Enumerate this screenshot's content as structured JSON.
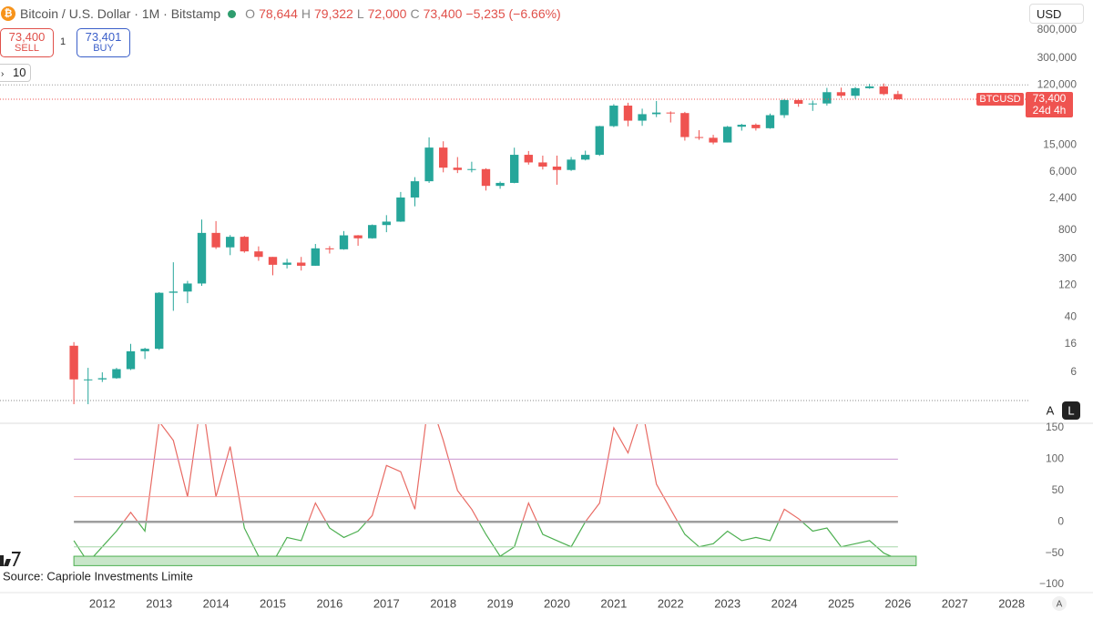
{
  "ui": {
    "header": {
      "symbol": "Bitcoin / U.S. Dollar · 1M · Bitstamp",
      "o_label": "O",
      "o": "78,644",
      "h_label": "H",
      "h": "79,322",
      "l_label": "L",
      "l": "72,000",
      "c_label": "C",
      "c": "73,400",
      "change": "−5,235 (−6.66%)"
    },
    "sell": {
      "price": "73,400",
      "label": "SELL"
    },
    "qty": "1",
    "buy": {
      "price": "73,401",
      "label": "BUY"
    },
    "interval": "10",
    "currency": "USD",
    "source": "Source: Capriole Investments Limite",
    "buttons": [
      "A",
      "L"
    ],
    "corner": "A"
  },
  "chart_data": [
    {
      "type": "candlestick",
      "log_scale": true,
      "x": [
        2011.5,
        2011.75,
        2012,
        2012.25,
        2012.5,
        2012.75,
        2013,
        2013.25,
        2013.5,
        2013.75,
        2014,
        2014.25,
        2014.5,
        2014.75,
        2015,
        2015.25,
        2015.5,
        2015.75,
        2016,
        2016.25,
        2016.5,
        2016.75,
        2017,
        2017.25,
        2017.5,
        2017.75,
        2018,
        2018.25,
        2018.5,
        2018.75,
        2019,
        2019.25,
        2019.5,
        2019.75,
        2020,
        2020.25,
        2020.5,
        2020.75,
        2021,
        2021.25,
        2021.5,
        2021.75,
        2022,
        2022.25,
        2022.5,
        2022.75,
        2023,
        2023.25,
        2023.5,
        2023.75,
        2024,
        2024.25,
        2024.5,
        2024.75,
        2025,
        2025.25,
        2025.5,
        2025.75,
        2026
      ],
      "open": [
        15,
        4.7,
        4.7,
        4.9,
        6.7,
        12.4,
        13.5,
        93,
        97,
        128,
        732,
        445,
        640,
        387,
        320,
        244,
        263,
        236,
        430,
        416,
        673,
        608,
        960,
        1080,
        2480,
        4340,
        13850,
        6930,
        6400,
        6600,
        3700,
        4100,
        10800,
        8300,
        7200,
        6400,
        9150,
        10780,
        28990,
        58800,
        35000,
        43800,
        46300,
        45500,
        19900,
        19400,
        16500,
        28400,
        30400,
        27000,
        42300,
        71300,
        62700,
        63300,
        93400,
        82500,
        107200,
        114000,
        87500
      ],
      "high": [
        17,
        7,
        6,
        7,
        16,
        14,
        95,
        266,
        140,
        1160,
        1100,
        680,
        660,
        460,
        320,
        300,
        320,
        500,
        465,
        780,
        680,
        980,
        1350,
        3000,
        5000,
        19700,
        17200,
        9990,
        8500,
        6800,
        4300,
        13800,
        12300,
        10500,
        10500,
        10000,
        12450,
        29300,
        61800,
        64900,
        52900,
        69000,
        48200,
        47400,
        25200,
        21500,
        29200,
        31400,
        31800,
        44700,
        73800,
        72000,
        70000,
        108300,
        109300,
        111900,
        124400,
        126200,
        97900
      ],
      "low": [
        2,
        2,
        4.3,
        4.8,
        6.5,
        9.5,
        13,
        50,
        65,
        118,
        420,
        340,
        370,
        280,
        170,
        215,
        200,
        235,
        360,
        410,
        470,
        600,
        750,
        1070,
        1830,
        4100,
        5900,
        5750,
        5900,
        3150,
        3350,
        4050,
        7700,
        6500,
        3850,
        6200,
        8900,
        10400,
        28000,
        28800,
        29300,
        39600,
        32900,
        17600,
        18100,
        15500,
        16500,
        24800,
        24900,
        26500,
        38500,
        56500,
        49000,
        58900,
        76600,
        74400,
        105000,
        84000,
        72000
      ],
      "close": [
        4.7,
        4.7,
        4.9,
        6.7,
        12.4,
        13.5,
        93,
        97,
        128,
        732,
        445,
        640,
        387,
        320,
        244,
        263,
        236,
        430,
        416,
        673,
        608,
        960,
        1080,
        2480,
        4340,
        13850,
        6930,
        6400,
        6600,
        3700,
        4100,
        10800,
        8300,
        7200,
        6400,
        9150,
        10780,
        28990,
        58800,
        35000,
        43800,
        46300,
        45500,
        19900,
        19400,
        16500,
        28400,
        30400,
        27000,
        42300,
        71300,
        62700,
        63300,
        93400,
        82500,
        107200,
        114000,
        87500,
        73400
      ],
      "up_color": "#26a69a",
      "down_color": "#ef5350",
      "ylim": [
        2.27,
        930000
      ],
      "yticks": [
        6,
        16,
        40,
        120,
        300,
        800,
        {
          "value": 2400,
          "label": "2,400"
        },
        {
          "value": 6000,
          "label": "6,000"
        },
        {
          "value": 15000,
          "label": "15,000"
        },
        {
          "value": 120000,
          "label": "120,000"
        },
        {
          "value": 300000,
          "label": "300,000"
        },
        {
          "value": 800000,
          "label": "800,000"
        }
      ],
      "xlim": [
        2010.2,
        2028.31
      ],
      "xticks": [
        2012,
        2013,
        2014,
        2015,
        2016,
        2017,
        2018,
        2019,
        2020,
        2021,
        2022,
        2023,
        2024,
        2025,
        2026,
        2027,
        2028
      ],
      "hline": 120000,
      "price_tag": {
        "name": "BTCUSD",
        "value_label": "73,400",
        "countdown": "24d 4h"
      }
    },
    {
      "type": "line",
      "x": [
        2011.5,
        2011.75,
        2012,
        2012.25,
        2012.5,
        2012.75,
        2013,
        2013.25,
        2013.5,
        2013.75,
        2014,
        2014.25,
        2014.5,
        2014.75,
        2015,
        2015.25,
        2015.5,
        2015.75,
        2016,
        2016.25,
        2016.5,
        2016.75,
        2017,
        2017.25,
        2017.5,
        2017.75,
        2018,
        2018.25,
        2018.5,
        2018.75,
        2019,
        2019.25,
        2019.5,
        2019.75,
        2020,
        2020.25,
        2020.5,
        2020.75,
        2021,
        2021.25,
        2021.5,
        2021.75,
        2022,
        2022.25,
        2022.5,
        2022.75,
        2023,
        2023.25,
        2023.5,
        2023.75,
        2024,
        2024.25,
        2024.5,
        2024.75,
        2025,
        2025.25,
        2025.5,
        2025.75,
        2026
      ],
      "values": [
        -30,
        -65,
        -40,
        -15,
        15,
        -15,
        160,
        130,
        40,
        200,
        40,
        120,
        -10,
        -55,
        -65,
        -25,
        -30,
        30,
        -10,
        -25,
        -15,
        10,
        90,
        80,
        20,
        200,
        130,
        50,
        20,
        -20,
        -55,
        -40,
        30,
        -20,
        -30,
        -40,
        0,
        30,
        150,
        110,
        180,
        60,
        20,
        -20,
        -40,
        -35,
        -15,
        -30,
        -25,
        -30,
        20,
        5,
        -15,
        -10,
        -40,
        -35,
        -30,
        -50,
        -60
      ],
      "color_above": "#e86a63",
      "color_below": "#4caf50",
      "ylim": [
        -111.6,
        155.8
      ],
      "yticks": [
        150,
        100,
        50,
        0,
        {
          "value": -50,
          "label": "−50"
        },
        {
          "value": -100,
          "label": "−100"
        }
      ],
      "levels": [
        100,
        40,
        0,
        -40
      ],
      "level_colors": [
        "#c994d1",
        "#f2a19c",
        "#9e9e9e",
        "#a5d6a7"
      ],
      "band": [
        -70,
        -55
      ],
      "band_color": "#c8e6c9"
    }
  ]
}
